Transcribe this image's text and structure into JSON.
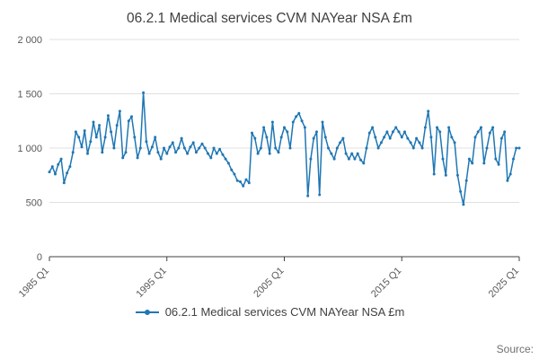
{
  "page": {
    "title": "06.2.1 Medical services CVM NAYear NSA £m",
    "source_label": "Source:"
  },
  "legend": {
    "label": "06.2.1 Medical services CVM NAYear NSA £m"
  },
  "colors": {
    "line": "#1f77b4",
    "grid": "#e0e0e0",
    "axis": "#414042",
    "tick_text": "#585858"
  },
  "chart_data": {
    "type": "line",
    "title": "06.2.1 Medical services CVM NAYear NSA £m",
    "frequency": "quarterly",
    "x_start": "1985 Q1",
    "x_end": "2025 Q1",
    "x_tick_labels": [
      "1985 Q1",
      "1995 Q1",
      "2005 Q1",
      "2015 Q1",
      "2025 Q1"
    ],
    "y_tick_labels": [
      "0",
      "500",
      "1 000",
      "1 500",
      "2 000"
    ],
    "ylim": [
      0,
      2000
    ],
    "grid": true,
    "legend_position": "bottom",
    "series": [
      {
        "name": "06.2.1 Medical services CVM NAYear NSA £m",
        "values": [
          780,
          830,
          760,
          850,
          900,
          680,
          770,
          830,
          960,
          1150,
          1100,
          1010,
          1160,
          950,
          1060,
          1240,
          1100,
          1210,
          960,
          1100,
          1300,
          1150,
          1000,
          1210,
          1340,
          910,
          960,
          1250,
          1290,
          1100,
          910,
          1000,
          1510,
          1060,
          950,
          1010,
          1100,
          960,
          900,
          1000,
          950,
          1010,
          1050,
          960,
          1000,
          1090,
          1000,
          950,
          1010,
          1050,
          960,
          1000,
          1040,
          1000,
          950,
          910,
          1000,
          950,
          990,
          940,
          900,
          860,
          800,
          760,
          700,
          690,
          650,
          710,
          680,
          1140,
          1090,
          950,
          1000,
          1190,
          1100,
          950,
          1240,
          1000,
          960,
          1100,
          1190,
          1150,
          1000,
          1240,
          1290,
          1320,
          1250,
          1190,
          560,
          900,
          1090,
          1150,
          570,
          1240,
          1100,
          1000,
          950,
          900,
          1000,
          1050,
          1090,
          950,
          900,
          950,
          900,
          950,
          890,
          860,
          1000,
          1140,
          1190,
          1100,
          1000,
          1050,
          1100,
          1150,
          1090,
          1150,
          1190,
          1150,
          1100,
          1150,
          1090,
          1050,
          1000,
          1090,
          1050,
          1000,
          1190,
          1340,
          1100,
          760,
          1190,
          1150,
          900,
          750,
          1190,
          1100,
          1050,
          750,
          600,
          480,
          700,
          900,
          860,
          1100,
          1150,
          1190,
          860,
          1000,
          1140,
          1190,
          900,
          850,
          1090,
          1150,
          700,
          760,
          900,
          1000,
          1000
        ]
      }
    ]
  }
}
